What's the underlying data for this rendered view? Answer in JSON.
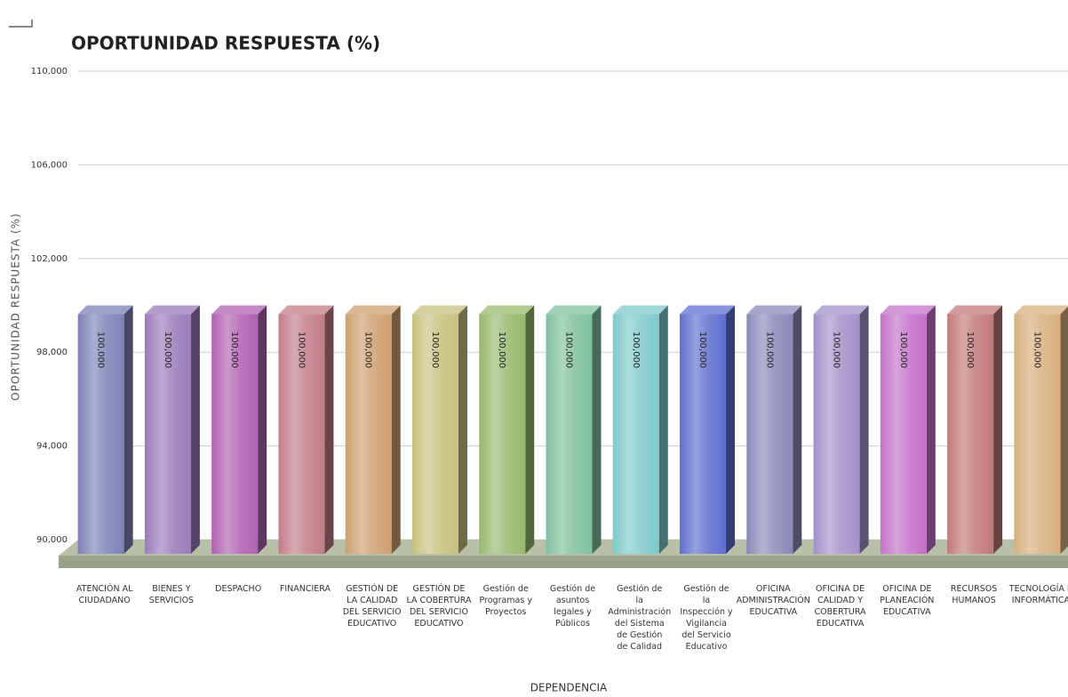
{
  "chart_data": {
    "type": "bar3d",
    "title": "OPORTUNIDAD RESPUESTA (%)",
    "y_label": "OPORTUNIDAD RESPUESTA (%)",
    "x_label": "DEPENDENCIA",
    "categories": [
      "ATENCIÓN AL CIUDADANO",
      "BIENES Y SERVICIOS",
      "DESPACHO",
      "FINANCIERA",
      "GESTIÓN DE LA CALIDAD DEL SERVICIO EDUCATIVO",
      "GESTIÓN DE LA COBERTURA DEL SERVICIO EDUCATIVO",
      "Gestión de Programas y Proyectos",
      "Gestión de asuntos legales y Públicos",
      "Gestión de la Administración del Sistema de Gestión de Calidad",
      "Gestión de la Inspección y Vigilancia del Servicio Educativo",
      "OFICINA ADMINISTRACIÓN EDUCATIVA",
      "OFICINA DE CALIDAD Y COBERTURA EDUCATIVA",
      "OFICINA DE PLANEACIÓN EDUCATIVA",
      "RECURSOS HUMANOS",
      "TECNOLOGÍA E INFORMÁTICA"
    ],
    "values": [
      100,
      100,
      100,
      100,
      100,
      100,
      100,
      100,
      100,
      100,
      100,
      100,
      100,
      100,
      100
    ],
    "value_labels": [
      "100,000",
      "100,000",
      "100,000",
      "100,000",
      "100,000",
      "100,000",
      "100,000",
      "100,000",
      "100,000",
      "100,000",
      "100,000",
      "100,000",
      "100,000",
      "100,000",
      "100,000"
    ],
    "colors": [
      "#7f82b8",
      "#9a7cba",
      "#b061b2",
      "#c27d8a",
      "#cfa070",
      "#c6c27e",
      "#98b96e",
      "#80c1a0",
      "#80cacb",
      "#5f6fd0",
      "#8a8ab9",
      "#a391c9",
      "#c471c9",
      "#c27a7b",
      "#d8b07f"
    ],
    "ylim": [
      90,
      110
    ],
    "yticks": [
      {
        "value": 90,
        "label": "90,000"
      },
      {
        "value": 94,
        "label": "94,000"
      },
      {
        "value": 98,
        "label": "98,000"
      },
      {
        "value": 102,
        "label": "102,000"
      },
      {
        "value": 106,
        "label": "106,000"
      },
      {
        "value": 110,
        "label": "110,000"
      }
    ],
    "grid": true
  }
}
